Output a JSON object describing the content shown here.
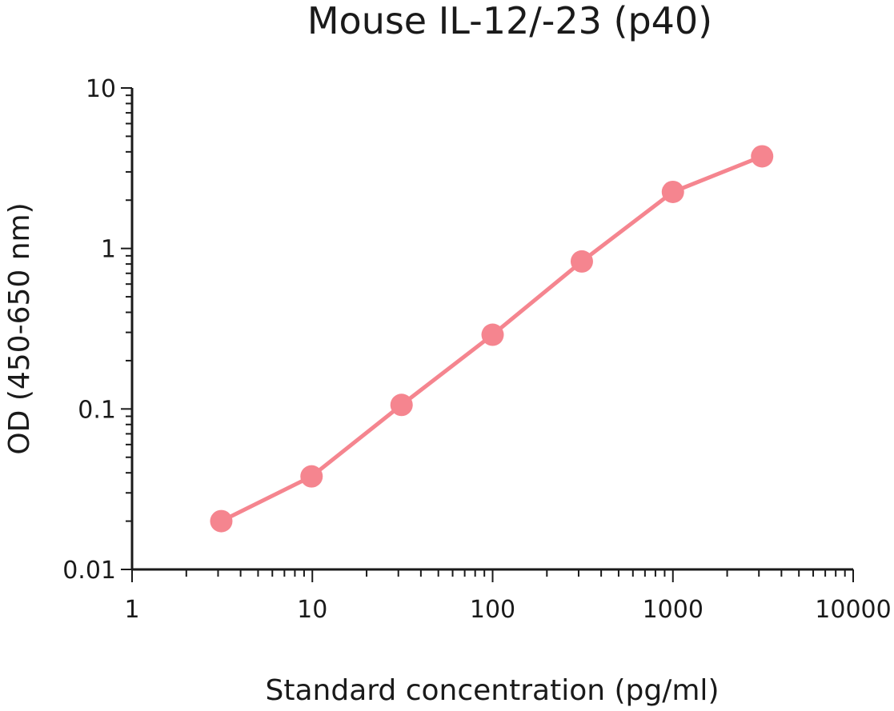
{
  "chart_data": {
    "type": "line",
    "title": "Mouse IL-12/-23 (p40)",
    "xlabel": "Standard concentration (pg/ml)",
    "ylabel": "OD  (450-650 nm)",
    "x_scale": "log",
    "y_scale": "log",
    "xlim": [
      1,
      10000
    ],
    "ylim": [
      0.01,
      10
    ],
    "x_ticks": [
      "1",
      "10",
      "100",
      "1000",
      "10000"
    ],
    "y_ticks": [
      "0.01",
      "0.1",
      "1",
      "10"
    ],
    "grid": false,
    "legend": "none",
    "series": [
      {
        "color": "#f5858f",
        "x": [
          3.125,
          9.9,
          31.25,
          100,
          312.5,
          1000,
          3125
        ],
        "y": [
          0.02,
          0.038,
          0.106,
          0.29,
          0.83,
          2.25,
          3.75
        ]
      }
    ]
  }
}
